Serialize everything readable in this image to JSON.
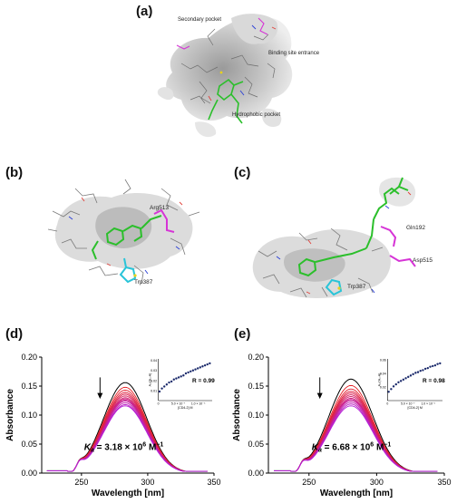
{
  "panels": {
    "a": {
      "letter": "(a)",
      "labels": {
        "secondary": "Secondary pocket",
        "entrance": "Binding site entrance",
        "hydrophobic": "Hydrophobic pocket"
      }
    },
    "b": {
      "letter": "(b)",
      "residues": [
        "Arg513",
        "Trp387"
      ]
    },
    "c": {
      "letter": "(c)",
      "residues": [
        "Gln192",
        "Asp515",
        "Trp387"
      ]
    },
    "d": {
      "letter": "(d)"
    },
    "e": {
      "letter": "(e)"
    }
  },
  "colors": {
    "ligand": "#2bbf2b",
    "residue_magenta": "#d634d6",
    "residue_cyan": "#29c4d8",
    "surface": "#bdbdbd",
    "stick": "#7a7a7a",
    "nitrogen": "#2a3fd6",
    "oxygen": "#e0403a",
    "sulfur": "#e8d21a",
    "fit": "#1fa2d6",
    "inset_points": "#1b2a6b"
  },
  "chart_data": [
    {
      "panel": "d",
      "type": "line",
      "xlabel": "Wavelength [nm]",
      "ylabel": "Absorbance",
      "xlim": [
        220,
        350
      ],
      "ylim": [
        0.0,
        0.2
      ],
      "xticks": [
        250,
        300,
        350
      ],
      "yticks": [
        "0.00",
        "0.05",
        "0.10",
        "0.15",
        "0.20"
      ],
      "ka_symbol": "K",
      "ka_sub": "a",
      "ka_text": " = 3.18 × 10",
      "ka_exp": "6",
      "ka_unit": " M",
      "ka_unit_exp": "−1",
      "peak_wavelength": 283,
      "shoulder_onset": 250,
      "arrow_x": 264,
      "series_peaks": [
        0.156,
        0.148,
        0.143,
        0.139,
        0.136,
        0.133,
        0.13,
        0.128,
        0.126,
        0.124,
        0.121,
        0.118,
        0.116
      ],
      "inset": {
        "r_text": "R = 0.99",
        "xlabel": "[CD4-2] M",
        "ylabel": "A₀/(A₀-A)",
        "xtick_labels": [
          "0",
          "5.0 × 10⁻⁷",
          "1.0 × 10⁻⁶"
        ],
        "ytick_labels": [
          "0.01",
          "0.02",
          "0.03",
          "0.04"
        ],
        "x": [
          0.3,
          0.9,
          1.5,
          2.1,
          2.7,
          3.3,
          3.9,
          4.5,
          5.1,
          5.7,
          6.3,
          6.9,
          7.5,
          8.1,
          8.7,
          9.3,
          9.9,
          10.5,
          11.1,
          11.7,
          12.3,
          12.9
        ],
        "y": [
          0.009,
          0.012,
          0.014,
          0.016,
          0.018,
          0.019,
          0.021,
          0.022,
          0.023,
          0.024,
          0.025,
          0.027,
          0.028,
          0.029,
          0.03,
          0.031,
          0.032,
          0.033,
          0.034,
          0.035,
          0.036,
          0.037
        ]
      }
    },
    {
      "panel": "e",
      "type": "line",
      "xlabel": "Wavelength [nm]",
      "ylabel": "Absorbance",
      "xlim": [
        220,
        350
      ],
      "ylim": [
        0.0,
        0.2
      ],
      "xticks": [
        250,
        300,
        350
      ],
      "yticks": [
        "0.00",
        "0.05",
        "0.10",
        "0.15",
        "0.20"
      ],
      "ka_symbol": "K",
      "ka_sub": "a",
      "ka_text": " = 6.68 × 10",
      "ka_exp": "6",
      "ka_unit": " M",
      "ka_unit_exp": "−1",
      "peak_wavelength": 281,
      "shoulder_onset": 247,
      "arrow_x": 258,
      "series_peaks": [
        0.162,
        0.151,
        0.145,
        0.141,
        0.138,
        0.135,
        0.132,
        0.129,
        0.127,
        0.125,
        0.122,
        0.119,
        0.116
      ],
      "inset": {
        "r_text": "R = 0.98",
        "xlabel": "[CD4-2] M",
        "ylabel": "A₀/(A₀-A)",
        "xtick_labels": [
          "0",
          "5.0 × 10⁻⁷",
          "1.0 × 10⁻⁶"
        ],
        "ytick_labels": [
          "0.02",
          "0.04",
          "0.06"
        ],
        "x": [
          0.3,
          0.9,
          1.5,
          2.1,
          2.7,
          3.3,
          3.9,
          4.5,
          5.1,
          5.7,
          6.3,
          6.9,
          7.5,
          8.1,
          8.7,
          9.3,
          9.9,
          10.5,
          11.1,
          11.7,
          12.3,
          12.9
        ],
        "y": [
          0.013,
          0.017,
          0.021,
          0.024,
          0.027,
          0.029,
          0.031,
          0.033,
          0.035,
          0.037,
          0.039,
          0.041,
          0.042,
          0.044,
          0.045,
          0.047,
          0.048,
          0.05,
          0.051,
          0.052,
          0.054,
          0.055
        ]
      }
    }
  ]
}
